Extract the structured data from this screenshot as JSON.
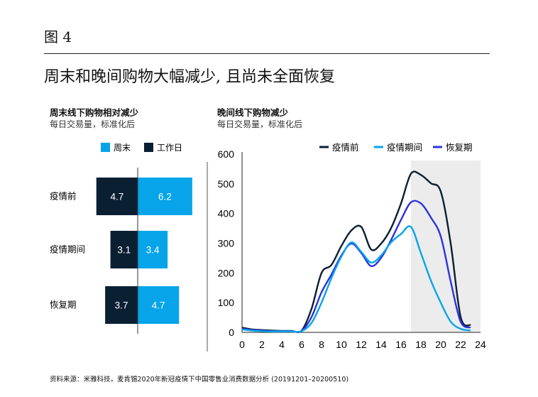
{
  "figure_label": "图 4",
  "title": "周末和晚间购物大幅减少, 且尚未全面恢复",
  "source": "资料来源：米雅科技，麦肯锡2020年新冠疫情下中国零售业消费数据分析 (20191201–20200510)",
  "colors": {
    "dark": "#0b1f33",
    "light": "#08a4ea",
    "blue": "#2a32e0",
    "shade": "#ececec"
  },
  "chart_data": [
    {
      "type": "bar",
      "title": "周末线下购物相对减少",
      "subtitle": "每日交易量，标准化后",
      "categories": [
        "疫情前",
        "疫情期间",
        "恢复期"
      ],
      "series": [
        {
          "name": "周末",
          "color": "#08a4ea",
          "values": [
            6.2,
            3.4,
            4.7
          ]
        },
        {
          "name": "工作日",
          "color": "#0b1f33",
          "values": [
            4.7,
            3.1,
            3.7
          ]
        }
      ],
      "legend": "top-right",
      "orientation": "horizontal-diverging"
    },
    {
      "type": "line",
      "title": "晚间线下购物减少",
      "subtitle": "每日交易量，标准化后",
      "x": [
        0,
        1,
        2,
        3,
        4,
        5,
        6,
        7,
        8,
        9,
        10,
        11,
        12,
        13,
        14,
        15,
        16,
        17,
        18,
        19,
        20,
        21,
        22,
        23
      ],
      "series": [
        {
          "name": "疫情前",
          "color": "#0b1f33",
          "values": [
            16,
            10,
            8,
            6,
            5,
            5,
            6,
            80,
            200,
            227,
            291,
            343,
            355,
            279,
            299,
            351,
            434,
            534,
            530,
            502,
            474,
            299,
            52,
            24
          ]
        },
        {
          "name": "疫情期间",
          "color": "#08a4ea",
          "values": [
            10,
            6,
            4,
            3,
            3,
            3,
            4,
            32,
            100,
            183,
            255,
            303,
            271,
            235,
            259,
            303,
            331,
            355,
            267,
            175,
            100,
            36,
            12,
            6
          ]
        },
        {
          "name": "恢复期",
          "color": "#2a32e0",
          "values": [
            12,
            8,
            6,
            4,
            4,
            4,
            5,
            52,
            135,
            195,
            259,
            299,
            267,
            223,
            251,
            311,
            379,
            438,
            434,
            387,
            323,
            171,
            36,
            16
          ]
        }
      ],
      "xlim": [
        0,
        24
      ],
      "ylim": [
        0,
        600
      ],
      "xticks": [
        0,
        2,
        4,
        6,
        8,
        10,
        12,
        14,
        16,
        18,
        20,
        22,
        24
      ],
      "yticks": [
        0,
        100,
        200,
        300,
        400,
        500,
        600
      ],
      "shaded_x_range": [
        17,
        24
      ],
      "legend": "top",
      "grid": false
    }
  ]
}
